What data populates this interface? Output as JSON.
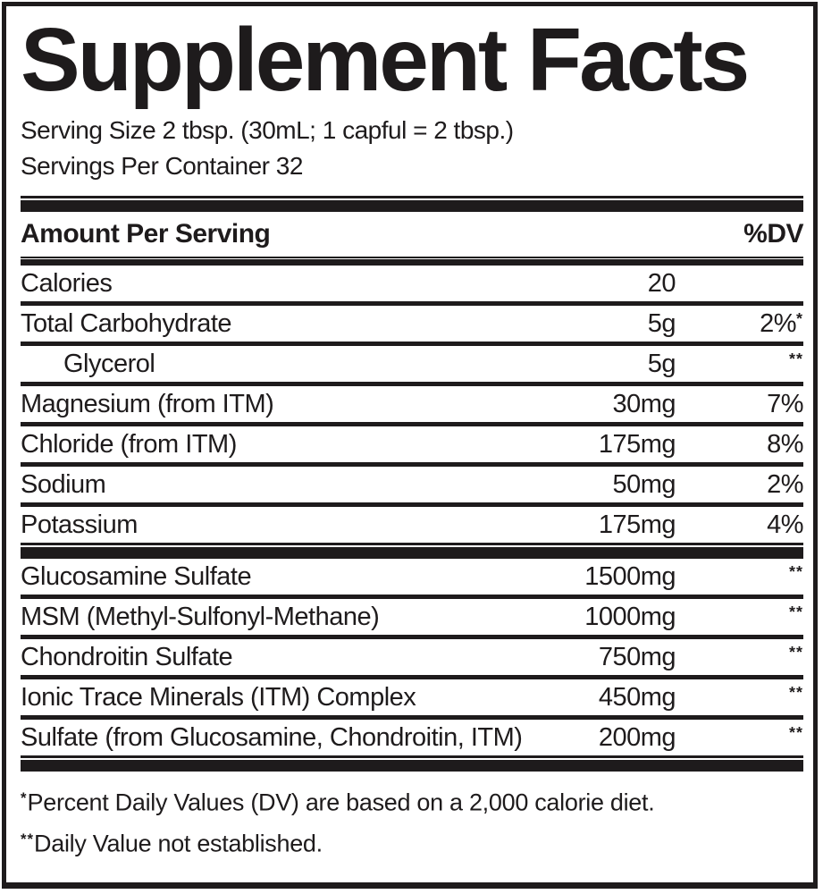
{
  "title": "Supplement Facts",
  "serving": {
    "size": "Serving Size 2 tbsp. (30mL; 1 capful = 2 tbsp.)",
    "per_container": "Servings Per Container 32"
  },
  "columns": {
    "amount_header": "Amount Per Serving",
    "dv_header": "%DV"
  },
  "rows": [
    {
      "name": "Calories",
      "amount": "20",
      "dv": ""
    },
    {
      "name": "Total Carbohydrate",
      "amount": "5g",
      "dv": "2%*"
    },
    {
      "name": "Glycerol",
      "amount": "5g",
      "dv": "**",
      "indented": true
    },
    {
      "name": "Magnesium (from ITM)",
      "amount": "30mg",
      "dv": "7%"
    },
    {
      "name": "Chloride (from ITM)",
      "amount": "175mg",
      "dv": "8%"
    },
    {
      "name": "Sodium",
      "amount": "50mg",
      "dv": "2%"
    },
    {
      "name": "Potassium",
      "amount": "175mg",
      "dv": "4%"
    },
    {
      "name": "Glucosamine Sulfate",
      "amount": "1500mg",
      "dv": "**"
    },
    {
      "name": "MSM (Methyl-Sulfonyl-Methane)",
      "amount": "1000mg",
      "dv": "**"
    },
    {
      "name": "Chondroitin Sulfate",
      "amount": "750mg",
      "dv": "**"
    },
    {
      "name": "Ionic Trace Minerals (ITM) Complex",
      "amount": "450mg",
      "dv": "**"
    },
    {
      "name": "Sulfate (from Glucosamine, Chondroitin, ITM)",
      "amount": "200mg",
      "dv": "**"
    }
  ],
  "footnotes": [
    "*Percent Daily Values (DV) are based on a 2,000 calorie diet.",
    "**Daily Value not established."
  ],
  "colors": {
    "ink": "#1e1b1c",
    "background": "#ffffff"
  }
}
